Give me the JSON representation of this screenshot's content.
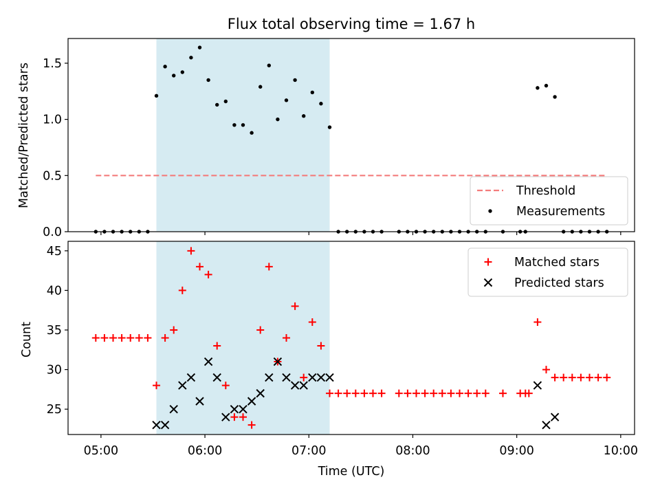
{
  "chart_data": {
    "title": "Flux total observing time = 1.67 h",
    "panels": [
      {
        "type": "scatter",
        "ylabel": "Matched/Predicted stars",
        "ylim": [
          0,
          1.72
        ],
        "yticks": [
          0.0,
          0.5,
          1.0,
          1.5
        ],
        "ytick_labels": [
          "0.0",
          "0.5",
          "1.0",
          "1.5"
        ],
        "series": [
          {
            "name": "Measurements",
            "marker": "dot",
            "color": "#000000",
            "points": [
              [
                "04:57",
                0.0
              ],
              [
                "05:02",
                0.0
              ],
              [
                "05:07",
                0.0
              ],
              [
                "05:12",
                0.0
              ],
              [
                "05:17",
                0.0
              ],
              [
                "05:22",
                0.0
              ],
              [
                "05:27",
                0.0
              ],
              [
                "05:32",
                1.21
              ],
              [
                "05:37",
                1.47
              ],
              [
                "05:42",
                1.39
              ],
              [
                "05:47",
                1.42
              ],
              [
                "05:52",
                1.55
              ],
              [
                "05:57",
                1.64
              ],
              [
                "06:02",
                1.35
              ],
              [
                "06:07",
                1.13
              ],
              [
                "06:12",
                1.16
              ],
              [
                "06:17",
                0.95
              ],
              [
                "06:22",
                0.95
              ],
              [
                "06:27",
                0.88
              ],
              [
                "06:32",
                1.29
              ],
              [
                "06:37",
                1.48
              ],
              [
                "06:42",
                1.0
              ],
              [
                "06:47",
                1.17
              ],
              [
                "06:52",
                1.35
              ],
              [
                "06:57",
                1.03
              ],
              [
                "07:02",
                1.24
              ],
              [
                "07:07",
                1.14
              ],
              [
                "07:12",
                0.93
              ],
              [
                "07:17",
                0.0
              ],
              [
                "07:22",
                0.0
              ],
              [
                "07:27",
                0.0
              ],
              [
                "07:32",
                0.0
              ],
              [
                "07:37",
                0.0
              ],
              [
                "07:42",
                0.0
              ],
              [
                "07:52",
                0.0
              ],
              [
                "07:57",
                0.0
              ],
              [
                "08:02",
                0.0
              ],
              [
                "08:07",
                0.0
              ],
              [
                "08:12",
                0.0
              ],
              [
                "08:17",
                0.0
              ],
              [
                "08:22",
                0.0
              ],
              [
                "08:27",
                0.0
              ],
              [
                "08:32",
                0.0
              ],
              [
                "08:37",
                0.0
              ],
              [
                "08:42",
                0.0
              ],
              [
                "08:52",
                0.0
              ],
              [
                "09:02",
                0.0
              ],
              [
                "09:05",
                0.0
              ],
              [
                "09:12",
                1.28
              ],
              [
                "09:17",
                1.3
              ],
              [
                "09:22",
                1.2
              ],
              [
                "09:27",
                0.0
              ],
              [
                "09:32",
                0.0
              ],
              [
                "09:37",
                0.0
              ],
              [
                "09:42",
                0.0
              ],
              [
                "09:47",
                0.0
              ],
              [
                "09:52",
                0.0
              ]
            ]
          }
        ],
        "reference_lines": [
          {
            "name": "Threshold",
            "y": 0.5,
            "x_start": "04:57",
            "x_end": "09:52",
            "style": "dashed",
            "color": "#f47c7c"
          }
        ],
        "legend": {
          "placement": "lower-right",
          "entries": [
            "Threshold",
            "Measurements"
          ]
        }
      },
      {
        "type": "scatter",
        "ylabel": "Count",
        "xlabel": "Time (UTC)",
        "ylim": [
          21.8,
          46.2
        ],
        "yticks": [
          25,
          30,
          35,
          40,
          45
        ],
        "ytick_labels": [
          "25",
          "30",
          "35",
          "40",
          "45"
        ],
        "series": [
          {
            "name": "Matched stars",
            "marker": "plus",
            "color": "#ff0000",
            "points": [
              [
                "04:57",
                34
              ],
              [
                "05:02",
                34
              ],
              [
                "05:07",
                34
              ],
              [
                "05:12",
                34
              ],
              [
                "05:17",
                34
              ],
              [
                "05:22",
                34
              ],
              [
                "05:27",
                34
              ],
              [
                "05:32",
                28
              ],
              [
                "05:37",
                34
              ],
              [
                "05:42",
                35
              ],
              [
                "05:47",
                40
              ],
              [
                "05:52",
                45
              ],
              [
                "05:57",
                43
              ],
              [
                "06:02",
                42
              ],
              [
                "06:07",
                33
              ],
              [
                "06:12",
                28
              ],
              [
                "06:17",
                24
              ],
              [
                "06:22",
                24
              ],
              [
                "06:27",
                23
              ],
              [
                "06:32",
                35
              ],
              [
                "06:37",
                43
              ],
              [
                "06:42",
                31
              ],
              [
                "06:47",
                34
              ],
              [
                "06:52",
                38
              ],
              [
                "06:57",
                29
              ],
              [
                "07:02",
                36
              ],
              [
                "07:07",
                33
              ],
              [
                "07:12",
                27
              ],
              [
                "07:17",
                27
              ],
              [
                "07:22",
                27
              ],
              [
                "07:27",
                27
              ],
              [
                "07:32",
                27
              ],
              [
                "07:37",
                27
              ],
              [
                "07:42",
                27
              ],
              [
                "07:52",
                27
              ],
              [
                "07:57",
                27
              ],
              [
                "08:02",
                27
              ],
              [
                "08:07",
                27
              ],
              [
                "08:12",
                27
              ],
              [
                "08:17",
                27
              ],
              [
                "08:22",
                27
              ],
              [
                "08:27",
                27
              ],
              [
                "08:32",
                27
              ],
              [
                "08:37",
                27
              ],
              [
                "08:42",
                27
              ],
              [
                "08:52",
                27
              ],
              [
                "09:02",
                27
              ],
              [
                "09:05",
                27
              ],
              [
                "09:07",
                27
              ],
              [
                "09:12",
                36
              ],
              [
                "09:17",
                30
              ],
              [
                "09:22",
                29
              ],
              [
                "09:27",
                29
              ],
              [
                "09:32",
                29
              ],
              [
                "09:37",
                29
              ],
              [
                "09:42",
                29
              ],
              [
                "09:47",
                29
              ],
              [
                "09:52",
                29
              ]
            ]
          },
          {
            "name": "Predicted stars",
            "marker": "x",
            "color": "#000000",
            "points": [
              [
                "05:32",
                23
              ],
              [
                "05:37",
                23
              ],
              [
                "05:42",
                25
              ],
              [
                "05:47",
                28
              ],
              [
                "05:52",
                29
              ],
              [
                "05:57",
                26
              ],
              [
                "06:02",
                31
              ],
              [
                "06:07",
                29
              ],
              [
                "06:12",
                24
              ],
              [
                "06:17",
                25
              ],
              [
                "06:22",
                25
              ],
              [
                "06:27",
                26
              ],
              [
                "06:32",
                27
              ],
              [
                "06:37",
                29
              ],
              [
                "06:42",
                31
              ],
              [
                "06:47",
                29
              ],
              [
                "06:52",
                28
              ],
              [
                "06:57",
                28
              ],
              [
                "07:02",
                29
              ],
              [
                "07:07",
                29
              ],
              [
                "07:12",
                29
              ],
              [
                "09:12",
                28
              ],
              [
                "09:17",
                23
              ],
              [
                "09:22",
                24
              ]
            ]
          }
        ],
        "legend": {
          "placement": "upper-right",
          "entries": [
            "Matched stars",
            "Predicted stars"
          ]
        }
      }
    ],
    "shared_x": {
      "type": "time",
      "xlim": [
        "04:41",
        "10:08"
      ],
      "xticks": [
        "05:00",
        "06:00",
        "07:00",
        "08:00",
        "09:00",
        "10:00"
      ],
      "xtick_labels": [
        "05:00",
        "06:00",
        "07:00",
        "08:00",
        "09:00",
        "10:00"
      ]
    },
    "shaded_region": {
      "x_start": "05:32",
      "x_end": "07:12",
      "color": "#add8e6",
      "opacity": 0.5
    },
    "grid": false
  }
}
